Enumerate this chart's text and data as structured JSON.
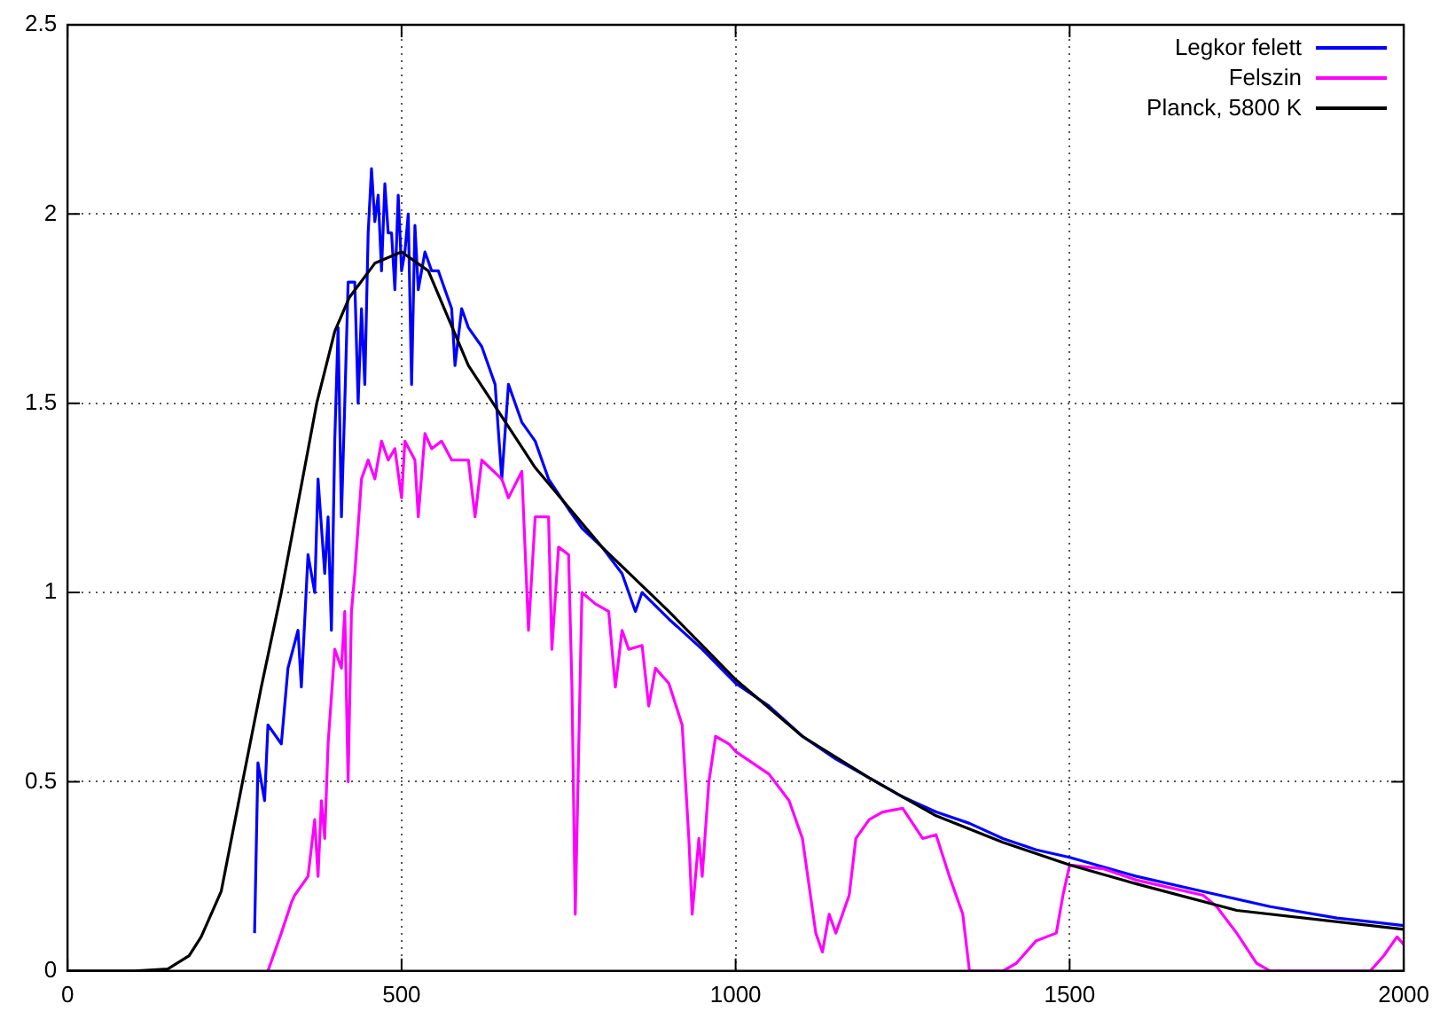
{
  "chart_data": {
    "type": "line",
    "xlim": [
      0,
      2000
    ],
    "xticks": [
      0,
      500,
      1000,
      1500,
      2000
    ],
    "ylim": [
      0,
      2.5
    ],
    "yticks": [
      0,
      0.5,
      1,
      1.5,
      2,
      2.5
    ],
    "grid": true,
    "legend": "top right",
    "marker": "none",
    "line_style": "solid",
    "series": [
      {
        "name": "Legkor felett",
        "color": "#0000ff",
        "x": [
          280,
          285,
          295,
          300,
          320,
          330,
          345,
          350,
          360,
          370,
          375,
          385,
          390,
          395,
          400,
          405,
          410,
          415,
          420,
          430,
          435,
          440,
          445,
          450,
          455,
          460,
          465,
          470,
          475,
          480,
          485,
          490,
          495,
          500,
          505,
          510,
          515,
          520,
          525,
          535,
          545,
          555,
          565,
          575,
          580,
          590,
          600,
          620,
          640,
          650,
          660,
          680,
          700,
          720,
          750,
          770,
          800,
          830,
          850,
          860,
          900,
          950,
          1000,
          1050,
          1100,
          1150,
          1200,
          1250,
          1300,
          1350,
          1400,
          1450,
          1500,
          1600,
          1700,
          1800,
          1900,
          2000
        ],
        "values": [
          0.1,
          0.55,
          0.45,
          0.65,
          0.6,
          0.8,
          0.9,
          0.75,
          1.1,
          1.0,
          1.3,
          1.05,
          1.2,
          0.9,
          1.4,
          1.7,
          1.2,
          1.5,
          1.82,
          1.82,
          1.5,
          1.75,
          1.55,
          1.95,
          2.12,
          1.98,
          2.05,
          1.85,
          2.08,
          1.95,
          1.95,
          1.8,
          2.05,
          1.85,
          1.9,
          2.0,
          1.55,
          1.97,
          1.8,
          1.9,
          1.85,
          1.85,
          1.8,
          1.75,
          1.6,
          1.75,
          1.7,
          1.65,
          1.55,
          1.3,
          1.55,
          1.45,
          1.4,
          1.3,
          1.22,
          1.17,
          1.12,
          1.05,
          0.95,
          1.0,
          0.93,
          0.85,
          0.76,
          0.7,
          0.62,
          0.56,
          0.51,
          0.46,
          0.42,
          0.39,
          0.35,
          0.32,
          0.3,
          0.25,
          0.21,
          0.17,
          0.14,
          0.12
        ]
      },
      {
        "name": "Felszin",
        "color": "#ff00ff",
        "x": [
          300,
          310,
          320,
          335,
          340,
          360,
          370,
          375,
          380,
          385,
          390,
          400,
          410,
          415,
          420,
          425,
          430,
          440,
          450,
          460,
          470,
          480,
          490,
          500,
          505,
          520,
          525,
          535,
          545,
          560,
          575,
          600,
          610,
          620,
          650,
          660,
          680,
          690,
          700,
          720,
          725,
          735,
          750,
          755,
          760,
          770,
          790,
          810,
          820,
          830,
          840,
          860,
          870,
          880,
          900,
          920,
          930,
          935,
          945,
          950,
          960,
          970,
          990,
          1000,
          1050,
          1080,
          1100,
          1120,
          1130,
          1140,
          1150,
          1170,
          1180,
          1200,
          1220,
          1250,
          1280,
          1300,
          1320,
          1340,
          1350,
          1400,
          1420,
          1450,
          1480,
          1490,
          1500,
          1550,
          1600,
          1650,
          1700,
          1720,
          1750,
          1780,
          1800,
          1950,
          1970,
          1990,
          2000
        ],
        "values": [
          0,
          0.05,
          0.1,
          0.18,
          0.2,
          0.25,
          0.4,
          0.25,
          0.45,
          0.35,
          0.6,
          0.85,
          0.8,
          0.95,
          0.5,
          0.95,
          1.05,
          1.3,
          1.35,
          1.3,
          1.4,
          1.35,
          1.38,
          1.25,
          1.4,
          1.35,
          1.2,
          1.42,
          1.38,
          1.4,
          1.35,
          1.35,
          1.2,
          1.35,
          1.3,
          1.25,
          1.32,
          0.9,
          1.2,
          1.2,
          0.85,
          1.12,
          1.1,
          0.75,
          0.15,
          1.0,
          0.97,
          0.95,
          0.75,
          0.9,
          0.85,
          0.86,
          0.7,
          0.8,
          0.76,
          0.65,
          0.35,
          0.15,
          0.35,
          0.25,
          0.5,
          0.62,
          0.6,
          0.58,
          0.52,
          0.45,
          0.35,
          0.1,
          0.05,
          0.15,
          0.1,
          0.2,
          0.35,
          0.4,
          0.42,
          0.43,
          0.35,
          0.36,
          0.25,
          0.15,
          0,
          0,
          0.02,
          0.08,
          0.1,
          0.2,
          0.28,
          0.27,
          0.24,
          0.22,
          0.2,
          0.17,
          0.1,
          0.02,
          0,
          0,
          0.04,
          0.09,
          0.07
        ]
      },
      {
        "name": "Planck, 5800 K",
        "color": "#000000",
        "x": [
          0,
          100,
          150,
          182,
          200,
          230,
          262,
          290,
          320,
          355,
          373,
          400,
          422,
          460,
          500,
          540,
          600,
          700,
          800,
          900,
          1000,
          1100,
          1200,
          1300,
          1400,
          1500,
          1600,
          1750,
          2000
        ],
        "values": [
          0,
          0,
          0.005,
          0.04,
          0.09,
          0.21,
          0.5,
          0.75,
          1.0,
          1.33,
          1.5,
          1.69,
          1.78,
          1.87,
          1.9,
          1.85,
          1.6,
          1.33,
          1.12,
          0.95,
          0.77,
          0.62,
          0.51,
          0.41,
          0.34,
          0.28,
          0.23,
          0.16,
          0.11
        ]
      }
    ]
  }
}
